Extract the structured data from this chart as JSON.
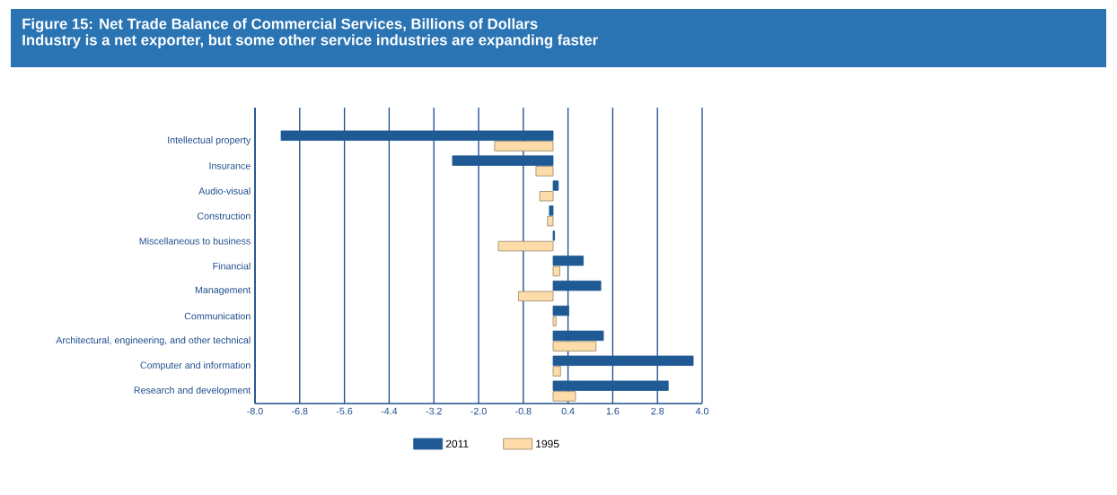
{
  "chart_data": {
    "type": "bar",
    "orientation": "horizontal",
    "title": "Figure 15: Net Trade Balance of Commercial Services, Billions of Dollars",
    "subtitle": "Industry is a net exporter, but some other service industries are expanding faster",
    "categories": [
      "Intellectual property",
      "Insurance",
      "Audio-visual",
      "Construction",
      "Miscellaneous to business",
      "Financial",
      "Management",
      "Communication",
      "Architectural, engineering, and other technical",
      "Computer and information",
      "Research and development"
    ],
    "series": [
      {
        "name": "2011",
        "color": "#1f5a94",
        "values": [
          -7.3,
          -2.7,
          0.14,
          -0.1,
          0.04,
          0.81,
          1.28,
          0.42,
          1.35,
          3.76,
          3.09
        ]
      },
      {
        "name": "1995",
        "color": "#fddcaa",
        "values": [
          -1.57,
          -0.46,
          -0.36,
          -0.15,
          -1.47,
          0.18,
          -0.93,
          0.08,
          1.15,
          0.2,
          0.6
        ]
      }
    ],
    "xlim": [
      -8,
      4
    ],
    "xticks": [
      {
        "value": -8,
        "label": "-8.0"
      },
      -6.8,
      -5.6,
      -4.4,
      -3.2,
      {
        "value": -2,
        "label": "-2.0"
      },
      -0.8,
      0.4,
      1.6,
      2.8,
      {
        "value": 4,
        "label": "4.0"
      }
    ],
    "grid": "x",
    "legend": "bottom"
  }
}
